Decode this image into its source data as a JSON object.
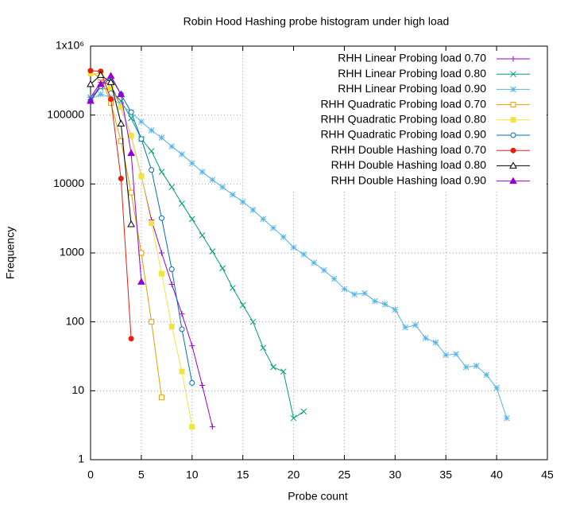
{
  "chart_data": {
    "type": "line",
    "title": "Robin Hood Hashing probe histogram under high load",
    "xlabel": "Probe count",
    "ylabel": "Frequency",
    "xlim": [
      0,
      45
    ],
    "xticks": [
      0,
      5,
      10,
      15,
      20,
      25,
      30,
      35,
      40,
      45
    ],
    "ylim": [
      1,
      1000000
    ],
    "yticks": [
      1,
      10,
      100,
      1000,
      10000,
      100000,
      {
        "value": 1000000,
        "label": "1x10⁶"
      }
    ],
    "yscale": "log",
    "grid": true,
    "legend": "top-right",
    "series": [
      {
        "name": "RHH Linear Probing load 0.70",
        "color": "#9400d3",
        "marker": "plus",
        "x": [
          0,
          1,
          2,
          3,
          4,
          5,
          6,
          7,
          8,
          9,
          10,
          11,
          12
        ],
        "values": [
          180000,
          300000,
          280000,
          130000,
          50000,
          13000,
          3000,
          1000,
          350,
          130,
          45,
          12,
          3
        ]
      },
      {
        "name": "RHH Linear Probing load 0.80",
        "color": "#009e73",
        "marker": "cross",
        "x": [
          0,
          1,
          2,
          3,
          4,
          5,
          6,
          7,
          8,
          9,
          10,
          11,
          12,
          13,
          14,
          15,
          16,
          17,
          18,
          19,
          20,
          21
        ],
        "values": [
          180000,
          250000,
          230000,
          160000,
          90000,
          45000,
          30000,
          15000,
          9000,
          5200,
          3100,
          1800,
          1050,
          600,
          310,
          175,
          100,
          42,
          22,
          19,
          4,
          5
        ]
      },
      {
        "name": "RHH Linear Probing load 0.90",
        "color": "#56b4e9",
        "marker": "star",
        "x": [
          0,
          1,
          2,
          3,
          4,
          5,
          6,
          7,
          8,
          9,
          10,
          11,
          12,
          13,
          14,
          15,
          16,
          17,
          18,
          19,
          20,
          21,
          22,
          23,
          24,
          25,
          26,
          27,
          28,
          29,
          30,
          31,
          32,
          33,
          34,
          35,
          36,
          37,
          38,
          39,
          40,
          41
        ],
        "values": [
          170000,
          200000,
          180000,
          140000,
          110000,
          80000,
          60000,
          47000,
          35000,
          27000,
          20000,
          15000,
          11500,
          9000,
          7000,
          5500,
          4200,
          3100,
          2300,
          1700,
          1200,
          950,
          720,
          560,
          420,
          300,
          250,
          260,
          200,
          180,
          150,
          83,
          90,
          58,
          50,
          33,
          34,
          22,
          23,
          17,
          11,
          4
        ]
      },
      {
        "name": "RHH Quadratic Probing load 0.70",
        "color": "#e69f00",
        "marker": "square-open",
        "x": [
          0,
          1,
          2,
          3,
          4,
          5,
          6,
          7
        ],
        "values": [
          420000,
          350000,
          150000,
          42000,
          7500,
          1000,
          100,
          8
        ]
      },
      {
        "name": "RHH Quadratic Probing load 0.80",
        "color": "#f0e442",
        "marker": "square",
        "x": [
          0,
          1,
          2,
          3,
          4,
          5,
          6,
          7,
          8,
          9,
          10
        ],
        "values": [
          400000,
          400000,
          250000,
          130000,
          50000,
          13000,
          2700,
          500,
          85,
          19,
          3
        ]
      },
      {
        "name": "RHH Quadratic Probing load 0.90",
        "color": "#0072b2",
        "marker": "circle-open",
        "x": [
          0,
          1,
          2,
          3,
          4,
          5,
          6,
          7,
          8,
          9,
          10
        ],
        "values": [
          160000,
          260000,
          350000,
          200000,
          110000,
          45000,
          16000,
          3200,
          580,
          78,
          13
        ]
      },
      {
        "name": "RHH Double Hashing load 0.70",
        "color": "#e51e10",
        "marker": "circle",
        "x": [
          0,
          1,
          2,
          3,
          4
        ],
        "values": [
          440000,
          430000,
          170000,
          12000,
          57
        ]
      },
      {
        "name": "RHH Double Hashing load 0.80",
        "color": "#000000",
        "marker": "triangle-open",
        "x": [
          0,
          1,
          2,
          3,
          4
        ],
        "values": [
          280000,
          380000,
          300000,
          75000,
          2600
        ]
      },
      {
        "name": "RHH Double Hashing load 0.90",
        "color": "#9400d3",
        "marker": "triangle",
        "x": [
          0,
          1,
          2,
          3,
          4,
          5
        ],
        "values": [
          160000,
          280000,
          370000,
          200000,
          28000,
          380
        ]
      }
    ]
  }
}
